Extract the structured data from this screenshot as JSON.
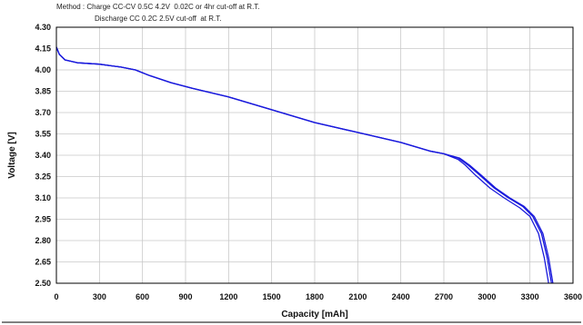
{
  "method": {
    "line1": "Method : Charge CC-CV 0.5C 4.2V  0.02C or 4hr cut-off at R.T.",
    "line2": "Discharge CC 0.2C 2.5V cut-off  at R.T."
  },
  "colors": {
    "series": "#1a1adc",
    "grid": "#c8c8c8",
    "axis": "#000000"
  },
  "chart_data": {
    "type": "line",
    "title": "",
    "xlabel": "Capacity [mAh]",
    "ylabel": "Voltage [V]",
    "xlim": [
      0,
      3600
    ],
    "ylim": [
      2.5,
      4.3
    ],
    "x_ticks": [
      "0",
      "300",
      "600",
      "900",
      "1200",
      "1500",
      "1800",
      "2100",
      "2400",
      "2700",
      "3000",
      "3300",
      "3600"
    ],
    "y_ticks": [
      "4.30",
      "4.15",
      "4.00",
      "3.85",
      "3.70",
      "3.55",
      "3.40",
      "3.25",
      "3.10",
      "2.95",
      "2.80",
      "2.65",
      "2.50"
    ],
    "grid": true,
    "series": [
      {
        "x": [
          0,
          20,
          60,
          150,
          300,
          450,
          550,
          650,
          800,
          950,
          1200,
          1500,
          1800,
          2100,
          2400,
          2600,
          2700,
          2800,
          2870,
          2950,
          3050,
          3150,
          3250,
          3320,
          3380,
          3420,
          3450
        ],
        "y": [
          4.16,
          4.11,
          4.07,
          4.05,
          4.04,
          4.02,
          4.0,
          3.96,
          3.91,
          3.87,
          3.81,
          3.72,
          3.63,
          3.56,
          3.49,
          3.43,
          3.41,
          3.38,
          3.33,
          3.26,
          3.17,
          3.1,
          3.04,
          2.97,
          2.85,
          2.68,
          2.5
        ]
      },
      {
        "x": [
          0,
          20,
          60,
          150,
          300,
          450,
          550,
          650,
          800,
          950,
          1200,
          1500,
          1800,
          2100,
          2400,
          2600,
          2700,
          2800,
          2850,
          2920,
          3020,
          3120,
          3230,
          3300,
          3360,
          3400,
          3430
        ],
        "y": [
          4.16,
          4.11,
          4.07,
          4.05,
          4.04,
          4.02,
          4.0,
          3.96,
          3.91,
          3.87,
          3.81,
          3.72,
          3.63,
          3.56,
          3.49,
          3.43,
          3.41,
          3.37,
          3.33,
          3.26,
          3.17,
          3.1,
          3.03,
          2.97,
          2.85,
          2.68,
          2.5
        ]
      },
      {
        "x": [
          0,
          20,
          60,
          150,
          300,
          450,
          550,
          650,
          800,
          950,
          1200,
          1500,
          1800,
          2100,
          2400,
          2600,
          2700,
          2810,
          2880,
          2960,
          3060,
          3160,
          3260,
          3330,
          3390,
          3430,
          3460
        ],
        "y": [
          4.16,
          4.11,
          4.07,
          4.05,
          4.04,
          4.02,
          4.0,
          3.96,
          3.91,
          3.87,
          3.81,
          3.72,
          3.63,
          3.56,
          3.49,
          3.43,
          3.41,
          3.38,
          3.33,
          3.26,
          3.17,
          3.1,
          3.04,
          2.97,
          2.85,
          2.68,
          2.5
        ]
      }
    ]
  }
}
